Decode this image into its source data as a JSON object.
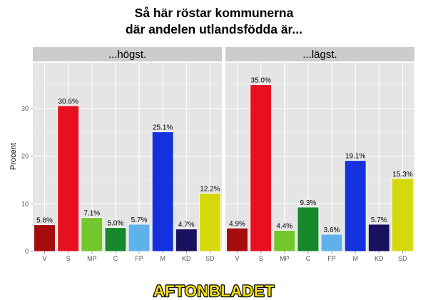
{
  "chart_data": {
    "type": "bar",
    "title_line1": "Så här röstar kommunerna",
    "title_line2": "där andelen utlandsfödda är...",
    "ylabel": "Procent",
    "ylim": [
      0,
      39.6
    ],
    "yticks": [
      "0",
      "10",
      "20",
      "30"
    ],
    "categories": [
      "V",
      "S",
      "MP",
      "C",
      "FP",
      "M",
      "KD",
      "SD"
    ],
    "colors": [
      "#a50a0c",
      "#e8101e",
      "#72c72c",
      "#16882c",
      "#5eb1ea",
      "#1431dd",
      "#19115e",
      "#d5d90c"
    ],
    "panels": [
      {
        "name": "...högst.",
        "values": [
          5.6,
          30.6,
          7.1,
          5.0,
          5.7,
          25.1,
          4.7,
          12.2
        ],
        "labels": [
          "5.6%",
          "30.6%",
          "7.1%",
          "5.0%",
          "5.7%",
          "25.1%",
          "4.7%",
          "12.2%"
        ]
      },
      {
        "name": "...lägst.",
        "values": [
          4.9,
          35.0,
          4.4,
          9.3,
          3.6,
          19.1,
          5.7,
          15.3
        ],
        "labels": [
          "4.9%",
          "35.0%",
          "4.4%",
          "9.3%",
          "3.6%",
          "19.1%",
          "5.7%",
          "15.3%"
        ]
      }
    ],
    "grid": true,
    "legend": "none"
  },
  "logo": {
    "text": "AFTONBLADET",
    "text_color": "#f5dc0a",
    "outline_color": "#000000"
  }
}
